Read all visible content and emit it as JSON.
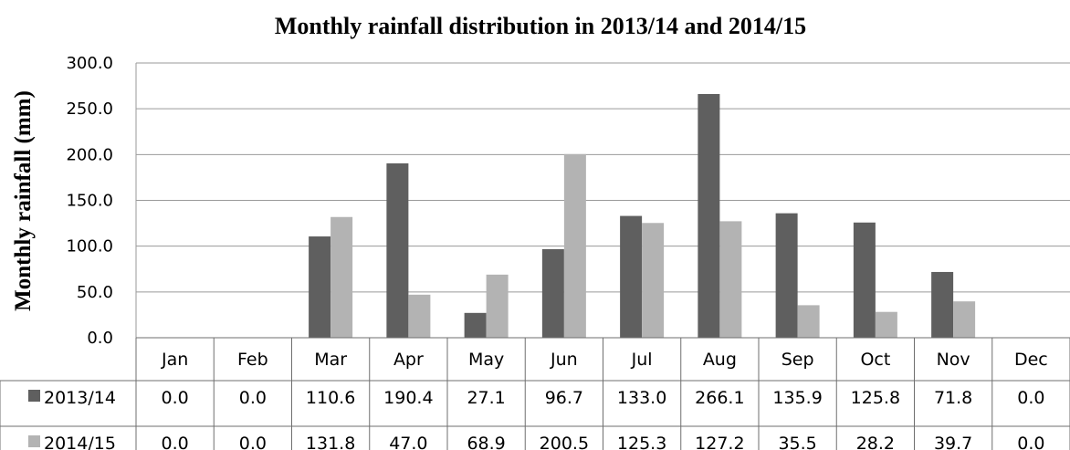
{
  "chart_data": {
    "type": "bar",
    "title": "Monthly rainfall distribution in 2013/14 and 2014/15",
    "ylabel": "Monthly rainfall (mm)",
    "xlabel": "",
    "categories": [
      "Jan",
      "Feb",
      "Mar",
      "Apr",
      "May",
      "Jun",
      "Jul",
      "Aug",
      "Sep",
      "Oct",
      "Nov",
      "Dec"
    ],
    "series": [
      {
        "name": "2013/14",
        "color": "#5f5f5f",
        "values": [
          0.0,
          0.0,
          110.6,
          190.4,
          27.1,
          96.7,
          133.0,
          266.1,
          135.9,
          125.8,
          71.8,
          0.0
        ],
        "labels": [
          "0.0",
          "0.0",
          "110.6",
          "190.4",
          "27.1",
          "96.7",
          "133.0",
          "266.1",
          "135.9",
          "125.8",
          "71.8",
          "0.0"
        ]
      },
      {
        "name": "2014/15",
        "color": "#b3b3b3",
        "values": [
          0.0,
          0.0,
          131.8,
          47.0,
          68.9,
          200.5,
          125.3,
          127.2,
          35.5,
          28.2,
          39.7,
          0.0
        ],
        "labels": [
          "0.0",
          "0.0",
          "131.8",
          "47.0",
          "68.9",
          "200.5",
          "125.3",
          "127.2",
          "35.5",
          "28.2",
          "39.7",
          "0.0"
        ]
      }
    ],
    "ylim": [
      0,
      300
    ],
    "yticks": [
      "0.0",
      "50.0",
      "100.0",
      "150.0",
      "200.0",
      "250.0",
      "300.0"
    ],
    "grid": true,
    "legend": "data-table"
  }
}
